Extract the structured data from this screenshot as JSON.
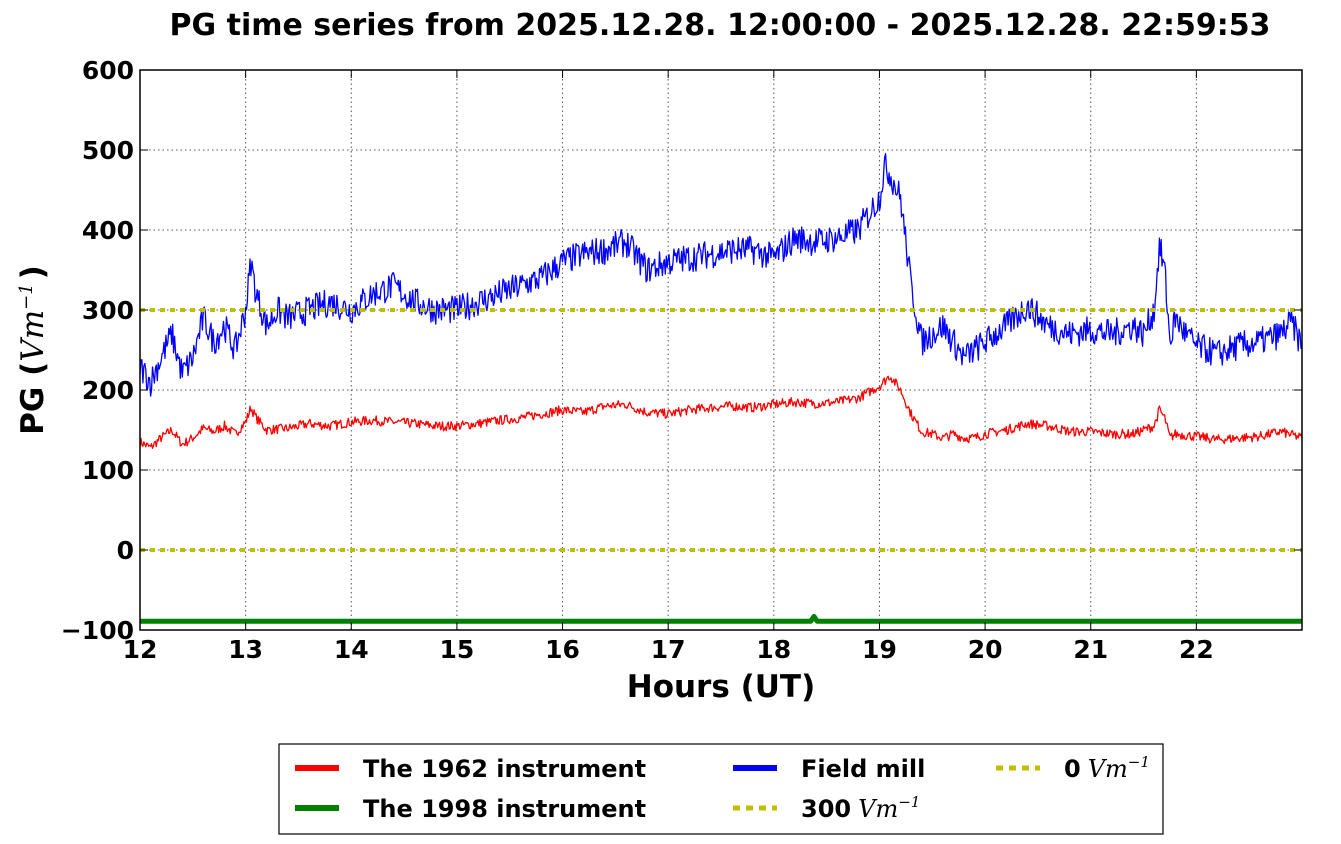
{
  "chart_data": {
    "type": "line",
    "title": "PG time series from 2025.12.28. 12:00:00 - 2025.12.28. 22:59:53",
    "xlabel": "Hours (UT)",
    "ylabel": {
      "prefix": "PG (",
      "unit": "Vm",
      "exp": "−1",
      "suffix": ")"
    },
    "xlim": [
      12,
      23
    ],
    "ylim": [
      -100,
      600
    ],
    "xticks": [
      12,
      13,
      14,
      15,
      16,
      17,
      18,
      19,
      20,
      21,
      22
    ],
    "yticks": [
      -100,
      0,
      100,
      200,
      300,
      400,
      500,
      600
    ],
    "grid": true,
    "legend_position": "bottom",
    "series": [
      {
        "name": "The 1962 instrument",
        "color": "#ff0000",
        "x": [
          12.0,
          12.1,
          12.2,
          12.3,
          12.4,
          12.5,
          12.6,
          12.7,
          12.8,
          12.9,
          13.0,
          13.05,
          13.1,
          13.2,
          13.4,
          13.6,
          13.8,
          14.0,
          14.2,
          14.4,
          14.6,
          14.8,
          15.0,
          15.2,
          15.4,
          15.6,
          15.8,
          16.0,
          16.2,
          16.4,
          16.6,
          16.8,
          17.0,
          17.2,
          17.4,
          17.6,
          17.8,
          18.0,
          18.2,
          18.4,
          18.6,
          18.8,
          19.0,
          19.1,
          19.2,
          19.3,
          19.4,
          19.5,
          19.6,
          19.7,
          19.8,
          19.9,
          20.0,
          20.2,
          20.4,
          20.6,
          20.8,
          21.0,
          21.2,
          21.4,
          21.6,
          21.65,
          21.7,
          21.75,
          21.8,
          22.0,
          22.2,
          22.4,
          22.6,
          22.8,
          23.0
        ],
        "values": [
          135,
          128,
          140,
          150,
          132,
          140,
          152,
          148,
          155,
          145,
          160,
          178,
          165,
          150,
          152,
          158,
          155,
          160,
          162,
          160,
          158,
          155,
          155,
          158,
          162,
          165,
          170,
          175,
          172,
          180,
          182,
          172,
          170,
          175,
          178,
          180,
          178,
          182,
          185,
          183,
          185,
          190,
          205,
          218,
          200,
          170,
          148,
          145,
          140,
          145,
          140,
          140,
          145,
          150,
          158,
          155,
          148,
          148,
          145,
          145,
          155,
          175,
          165,
          140,
          145,
          142,
          138,
          140,
          142,
          148,
          140
        ]
      },
      {
        "name": "The 1998 instrument",
        "color": "#008000",
        "x": [
          12.0,
          18.35,
          18.38,
          18.41,
          23.0
        ],
        "values": [
          -89,
          -89,
          -83,
          -89,
          -89
        ]
      },
      {
        "name": "Field mill",
        "color": "#0000ff",
        "x": [
          12.0,
          12.1,
          12.2,
          12.3,
          12.4,
          12.5,
          12.6,
          12.7,
          12.8,
          12.9,
          13.0,
          13.05,
          13.1,
          13.2,
          13.3,
          13.4,
          13.6,
          13.8,
          14.0,
          14.2,
          14.4,
          14.6,
          14.8,
          15.0,
          15.2,
          15.4,
          15.6,
          15.8,
          16.0,
          16.2,
          16.4,
          16.6,
          16.8,
          17.0,
          17.2,
          17.4,
          17.6,
          17.8,
          18.0,
          18.2,
          18.4,
          18.6,
          18.8,
          19.0,
          19.05,
          19.1,
          19.2,
          19.3,
          19.4,
          19.5,
          19.6,
          19.7,
          19.8,
          19.9,
          20.0,
          20.2,
          20.4,
          20.6,
          20.8,
          21.0,
          21.2,
          21.4,
          21.5,
          21.6,
          21.65,
          21.7,
          21.75,
          21.8,
          21.9,
          22.0,
          22.2,
          22.4,
          22.6,
          22.8,
          22.9,
          23.0
        ],
        "values": [
          230,
          210,
          240,
          270,
          220,
          240,
          290,
          260,
          280,
          250,
          300,
          360,
          320,
          280,
          300,
          290,
          300,
          310,
          300,
          320,
          330,
          310,
          300,
          300,
          310,
          320,
          330,
          340,
          360,
          370,
          375,
          385,
          350,
          360,
          365,
          370,
          375,
          375,
          365,
          390,
          385,
          390,
          400,
          440,
          480,
          470,
          440,
          330,
          260,
          270,
          280,
          260,
          240,
          250,
          260,
          280,
          305,
          280,
          270,
          275,
          270,
          280,
          270,
          300,
          380,
          350,
          260,
          290,
          270,
          255,
          245,
          255,
          260,
          270,
          285,
          255
        ]
      },
      {
        "name": "300",
        "color": "#bfbf00",
        "x": [
          12,
          23
        ],
        "values": [
          300,
          300
        ]
      },
      {
        "name": "0",
        "color": "#bfbf00",
        "x": [
          12,
          23
        ],
        "values": [
          0,
          0
        ]
      }
    ],
    "legend": [
      {
        "text": "The 1962 instrument",
        "unit": "",
        "exp": ""
      },
      {
        "text": "The 1998 instrument",
        "unit": "",
        "exp": ""
      },
      {
        "text": "Field mill",
        "unit": "",
        "exp": ""
      },
      {
        "text": "300",
        "unit": "Vm",
        "exp": "−1"
      },
      {
        "text": "0",
        "unit": "Vm",
        "exp": "−1"
      }
    ]
  }
}
